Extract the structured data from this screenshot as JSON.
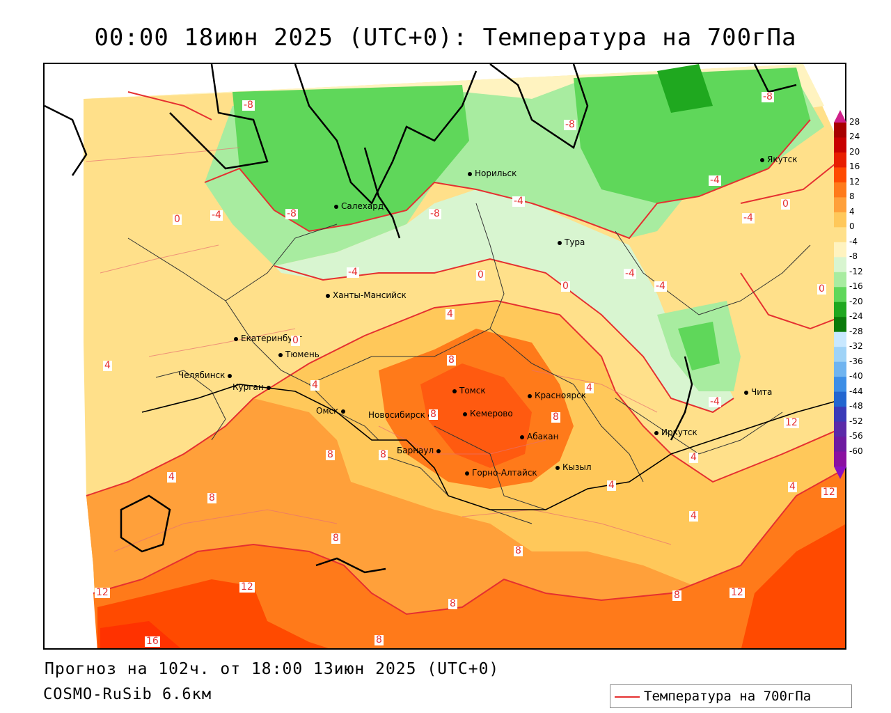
{
  "title": "00:00 18июн 2025 (UTC+0): Температура на 700гПа",
  "footer": {
    "forecast": "Прогноз на 102ч. от 18:00 13июн 2025 (UTC+0)",
    "model": "COSMO-RuSib 6.6км"
  },
  "legend": {
    "label": "Температура на 700гПа",
    "line_color": "#e53030"
  },
  "colorbar": {
    "units_shown": false,
    "ticks": [
      "28",
      "24",
      "20",
      "16",
      "12",
      "8",
      "4",
      "0",
      "-4",
      "-8",
      "-12",
      "-16",
      "-20",
      "-24",
      "-28",
      "-32",
      "-36",
      "-40",
      "-44",
      "-48",
      "-52",
      "-56",
      "-60"
    ],
    "colors_top_to_bottom": [
      "#a80000",
      "#c80000",
      "#e81e00",
      "#ff4a00",
      "#ff7a1a",
      "#ffa03a",
      "#ffc85a",
      "#ffe08a",
      "#fff3c0",
      "#d8f5d0",
      "#a8eca0",
      "#5fd75a",
      "#1fa81f",
      "#0a7a0a",
      "#c8e8ff",
      "#9fd3f7",
      "#6fb4f0",
      "#3d8ee6",
      "#2266d0",
      "#3a3ab8",
      "#5b2aa8",
      "#6e1aa0",
      "#8a10a0"
    ],
    "top_arrow_color": "#d0208a",
    "bottom_arrow_color": "#8a10c0"
  },
  "cities": [
    {
      "name": "Салехард"
    },
    {
      "name": "Норильск"
    },
    {
      "name": "Якутск"
    },
    {
      "name": "Тура"
    },
    {
      "name": "Ханты-Мансийск"
    },
    {
      "name": "Екатеринбург"
    },
    {
      "name": "Тюмень"
    },
    {
      "name": "Челябинск"
    },
    {
      "name": "Курган"
    },
    {
      "name": "Омск"
    },
    {
      "name": "Новосибирск"
    },
    {
      "name": "Томск"
    },
    {
      "name": "Кемерово"
    },
    {
      "name": "Красноярск"
    },
    {
      "name": "Барнаул"
    },
    {
      "name": "Абакан"
    },
    {
      "name": "Горно-Алтайск"
    },
    {
      "name": "Кызыл"
    },
    {
      "name": "Иркутск"
    },
    {
      "name": "Чита"
    }
  ],
  "isotherm_labels": [
    "-8",
    "-8",
    "-8",
    "-4",
    "-8",
    "-8",
    "-4",
    "-4",
    "-4",
    "-4",
    "0",
    "0",
    "0",
    "0",
    "-4",
    "0",
    "0",
    "4",
    "8",
    "4",
    "4",
    "4",
    "8",
    "8",
    "8",
    "8",
    "4",
    "4",
    "4",
    "8",
    "8",
    "8",
    "12",
    "12",
    "12",
    "12",
    "16",
    "8",
    "8",
    "8",
    "12",
    "-4",
    "4",
    "4",
    "-4"
  ]
}
